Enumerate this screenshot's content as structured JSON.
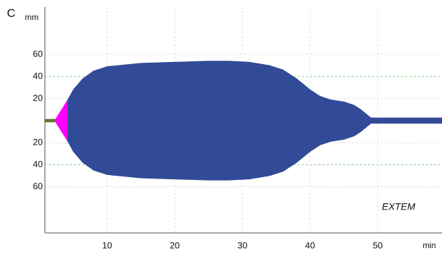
{
  "chart_data": {
    "type": "mirrored_area",
    "panel_label": "C",
    "y_axis_label": "mm",
    "x_axis_label": "min",
    "annotation": "EXTEM",
    "xlim": [
      0.8,
      59.5
    ],
    "xticks": [
      10,
      20,
      30,
      40,
      50
    ],
    "ylim": [
      -100,
      100
    ],
    "yticks": [
      60,
      40,
      20,
      {
        "value": -20,
        "label": "20"
      },
      {
        "value": -40,
        "label": "40"
      },
      {
        "value": -60,
        "label": "60"
      }
    ],
    "grid": true,
    "reference_lines": {
      "values": [
        40,
        -40
      ],
      "color": "#9ad79a"
    },
    "series": [
      {
        "color": "#5a7a2a",
        "x": [
          0.8,
          2.3
        ],
        "values": [
          1.2,
          1.2
        ]
      },
      {
        "color": "#ff00ff",
        "x": [
          2.3,
          4.2
        ],
        "values": [
          0.5,
          19
        ]
      },
      {
        "color": "#324b98",
        "x": [
          4.2,
          5,
          6.4,
          8,
          10,
          15,
          20,
          25,
          28,
          31,
          34,
          36,
          38,
          40,
          41.5,
          43,
          45,
          46.5,
          47.5,
          48.5,
          49,
          59.5
        ],
        "values": [
          19,
          28,
          38,
          45,
          49,
          52,
          53,
          54,
          54,
          53,
          50,
          46,
          38,
          28,
          22,
          19,
          17,
          14,
          10,
          5,
          2.5,
          2.5
        ]
      }
    ]
  }
}
